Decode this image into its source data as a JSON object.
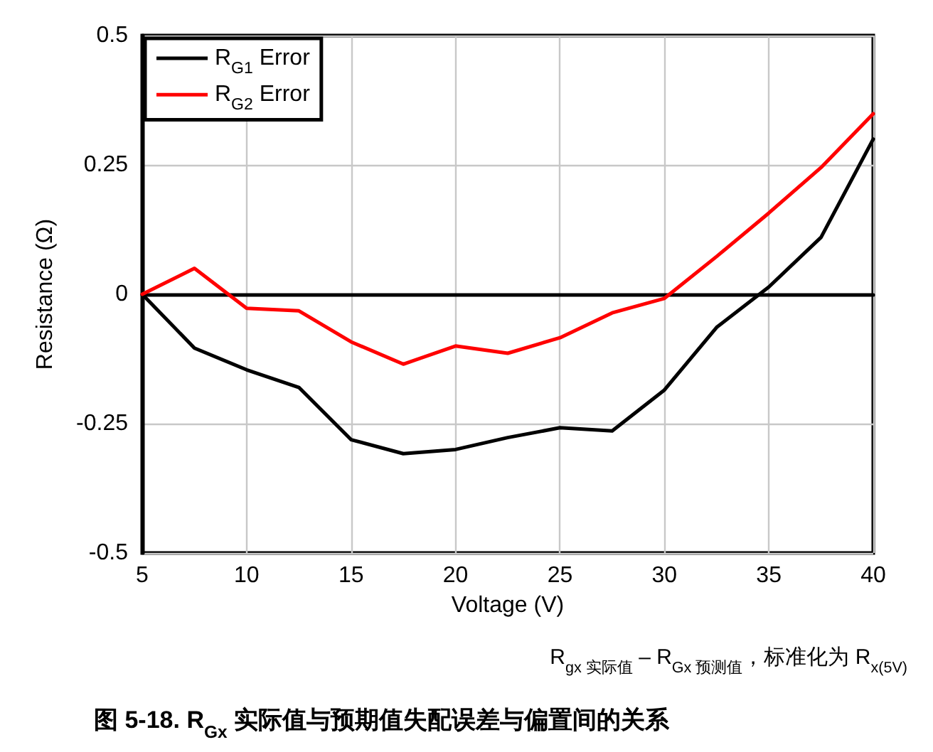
{
  "chart_data": {
    "type": "line",
    "title": "图 5-18. R$_{Gx}$ 实际值与预期值失配误差与偏置间的关系",
    "xlabel": "Voltage (V)",
    "ylabel": "Resistance (Ω)",
    "annotations": [
      "R$_{gx 实际值}$ – R$_{Gx 预测值}$，标准化为 R$_{x(5V)}$"
    ],
    "x": [
      5,
      7.5,
      10,
      12.5,
      15,
      17.5,
      20,
      22.5,
      25,
      27.5,
      30,
      32.5,
      35,
      37.5,
      40
    ],
    "series": [
      {
        "name": "R$_{G1}$ Error",
        "color": "#000000",
        "values": [
          0,
          -0.104,
          -0.146,
          -0.18,
          -0.281,
          -0.308,
          -0.3,
          -0.277,
          -0.258,
          -0.264,
          -0.185,
          -0.064,
          0.014,
          0.11,
          0.3
        ]
      },
      {
        "name": "R$_{G2}$ Error",
        "color": "#ff0000",
        "values": [
          0,
          0.05,
          -0.027,
          -0.032,
          -0.092,
          -0.135,
          -0.1,
          -0.114,
          -0.084,
          -0.036,
          -0.008,
          0.073,
          0.157,
          0.245,
          0.349
        ]
      }
    ],
    "xlim": [
      5,
      40
    ],
    "xticks": [
      5,
      10,
      15,
      20,
      25,
      30,
      35,
      40
    ],
    "ylim": [
      -0.5,
      0.5
    ],
    "yticks": [
      -0.5,
      -0.25,
      0,
      0.25,
      0.5
    ],
    "grid": true,
    "legend": "top left",
    "marker": "none",
    "line_style": "solid"
  }
}
